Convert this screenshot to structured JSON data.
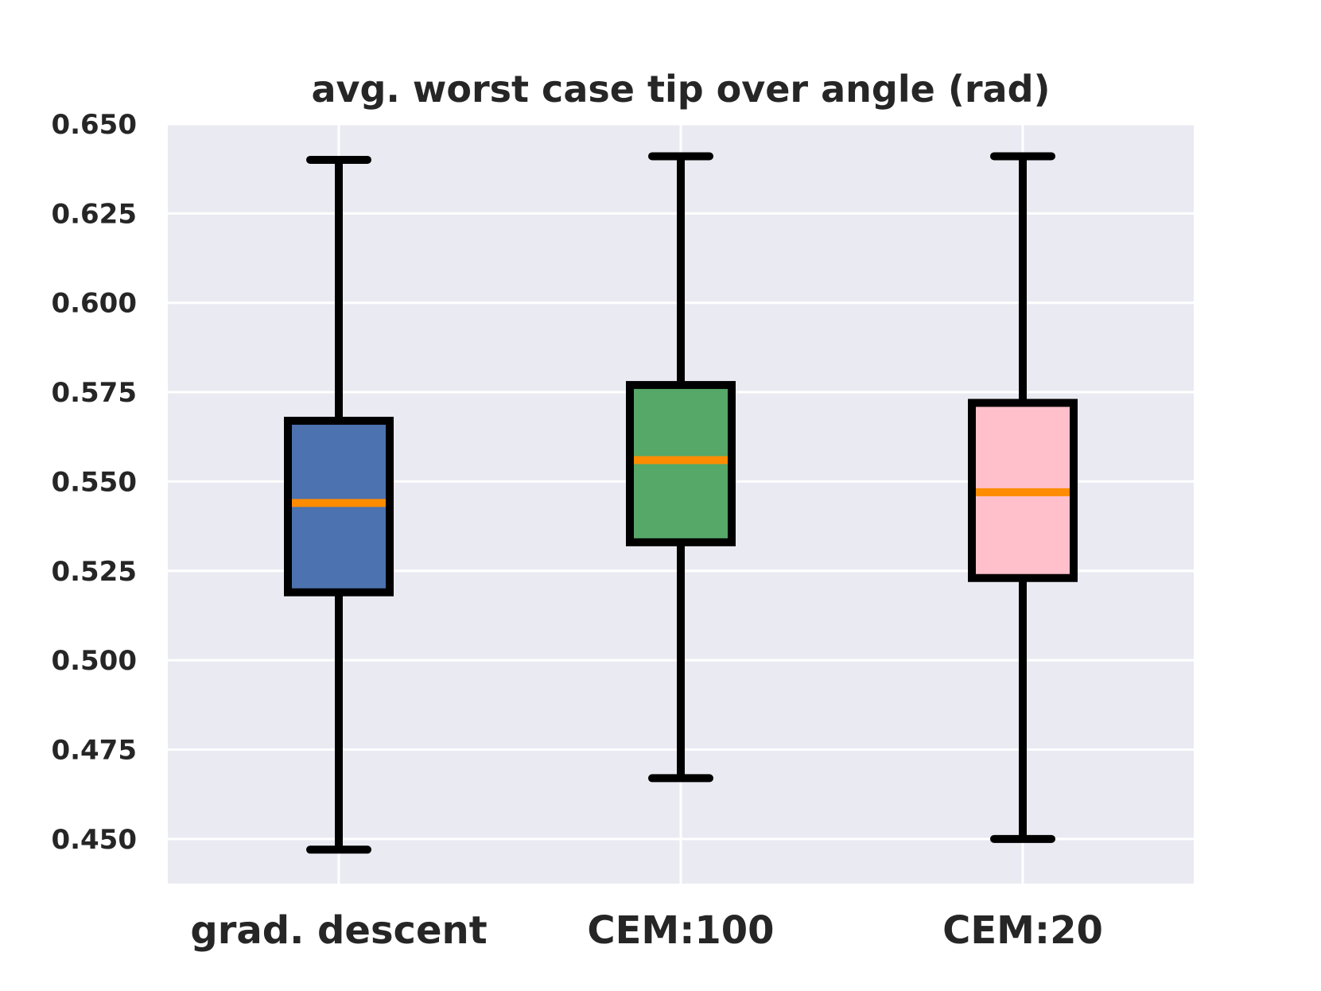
{
  "chart_data": {
    "type": "box",
    "title": "avg. worst case tip over angle (rad)",
    "xlabel": "",
    "ylabel": "",
    "ylim": [
      0.4375,
      0.65
    ],
    "yticks": [
      "0.650",
      "0.625",
      "0.600",
      "0.575",
      "0.550",
      "0.525",
      "0.500",
      "0.475",
      "0.450"
    ],
    "ytick_values": [
      0.65,
      0.625,
      0.6,
      0.575,
      0.55,
      0.525,
      0.5,
      0.475,
      0.45
    ],
    "grid": true,
    "categories": [
      "grad. descent",
      "CEM:100",
      "CEM:20"
    ],
    "boxes": [
      {
        "whisker_low": 0.447,
        "q1": 0.519,
        "median": 0.544,
        "q3": 0.567,
        "whisker_high": 0.64,
        "color": "#4c72b0"
      },
      {
        "whisker_low": 0.467,
        "q1": 0.533,
        "median": 0.556,
        "q3": 0.577,
        "whisker_high": 0.641,
        "color": "#55a868"
      },
      {
        "whisker_low": 0.45,
        "q1": 0.523,
        "median": 0.547,
        "q3": 0.572,
        "whisker_high": 0.641,
        "color": "#ffc0cb"
      }
    ],
    "colors": {
      "plot_background": "#eaeaf2",
      "grid": "#ffffff",
      "box_edge": "#000000",
      "median": "#ff8c00"
    }
  }
}
